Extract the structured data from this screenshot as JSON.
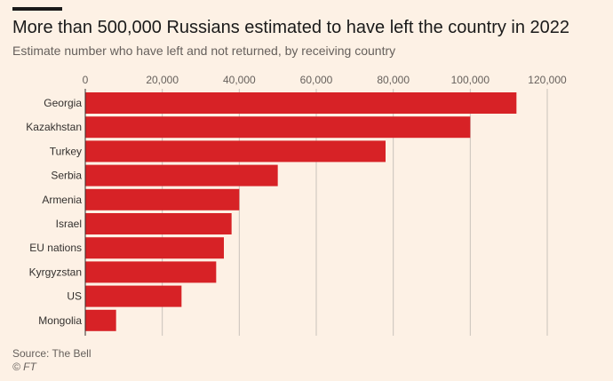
{
  "header": {
    "title": "More than 500,000 Russians estimated to have left the country in 2022",
    "subtitle": "Estimate number who have left and not returned, by receiving country"
  },
  "footer": {
    "source": "Source: The Bell",
    "credit": "© FT"
  },
  "colors": {
    "bar": "#d72226",
    "grid": "#c9c2bb",
    "background": "#fdf1e5",
    "text": "#33302e"
  },
  "chart_data": {
    "type": "bar",
    "orientation": "horizontal",
    "title": "More than 500,000 Russians estimated to have left the country in 2022",
    "subtitle": "Estimate number who have left and not returned, by receiving country",
    "xlabel": "",
    "ylabel": "",
    "xlim": [
      0,
      120000
    ],
    "xticks": [
      0,
      20000,
      40000,
      60000,
      80000,
      100000,
      120000
    ],
    "xtick_labels": [
      "0",
      "20,000",
      "40,000",
      "60,000",
      "80,000",
      "100,000",
      "120,000"
    ],
    "categories": [
      "Georgia",
      "Kazakhstan",
      "Turkey",
      "Serbia",
      "Armenia",
      "Israel",
      "EU nations",
      "Kyrgyzstan",
      "US",
      "Mongolia"
    ],
    "values": [
      112000,
      100000,
      78000,
      50000,
      40000,
      38000,
      36000,
      34000,
      25000,
      8000
    ],
    "grid": true,
    "legend": "none"
  }
}
